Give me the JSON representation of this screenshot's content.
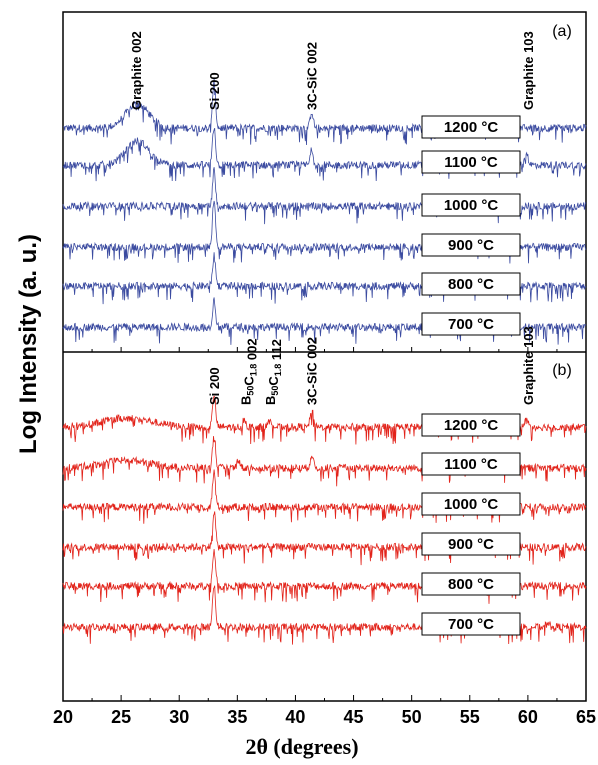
{
  "chart_data": {
    "type": "line",
    "ylabel": "Log Intensity (a. u.)",
    "xlabel": "2θ (degrees)",
    "xlim": [
      20,
      65
    ],
    "x_ticks": [
      20,
      25,
      30,
      35,
      40,
      45,
      50,
      55,
      60,
      65
    ],
    "panels": [
      {
        "label": "(a)",
        "color": "#3b4ba0",
        "series": [
          {
            "name": "1200 °C",
            "broad_peaks": [
              {
                "x": 26.4,
                "h": 0.8,
                "w": 1.4
              }
            ],
            "sharp_peaks": [
              {
                "x": 33.0,
                "h": 1.6
              },
              {
                "x": 41.4,
                "h": 0.55
              }
            ]
          },
          {
            "name": "1100 °C",
            "broad_peaks": [
              {
                "x": 26.4,
                "h": 0.8,
                "w": 1.4
              }
            ],
            "sharp_peaks": [
              {
                "x": 33.0,
                "h": 1.3
              },
              {
                "x": 41.4,
                "h": 0.5
              },
              {
                "x": 59.9,
                "h": 0.4
              }
            ]
          },
          {
            "name": "1000 °C",
            "broad_peaks": [],
            "sharp_peaks": [
              {
                "x": 33.0,
                "h": 1.2
              }
            ]
          },
          {
            "name": "900 °C",
            "broad_peaks": [],
            "sharp_peaks": [
              {
                "x": 33.0,
                "h": 1.6
              }
            ]
          },
          {
            "name": "800 °C",
            "broad_peaks": [],
            "sharp_peaks": [
              {
                "x": 33.0,
                "h": 1.0
              }
            ]
          },
          {
            "name": "700 °C",
            "broad_peaks": [],
            "sharp_peaks": [
              {
                "x": 33.0,
                "h": 0.9
              }
            ]
          }
        ],
        "peak_labels": [
          {
            "text": "Graphite 002",
            "x": 26.3
          },
          {
            "text": "Si 200",
            "x": 33.0
          },
          {
            "text": "3C-SiC 002",
            "x": 41.4
          },
          {
            "text": "Graphite 103",
            "x": 60.0
          }
        ]
      },
      {
        "label": "(b)",
        "color": "#e2231a",
        "series": [
          {
            "name": "1200 °C",
            "broad_peaks": [
              {
                "x": 25.5,
                "h": 0.3,
                "w": 3.0
              }
            ],
            "sharp_peaks": [
              {
                "x": 33.0,
                "h": 1.1
              },
              {
                "x": 35.6,
                "h": 0.3
              },
              {
                "x": 37.8,
                "h": 0.35
              },
              {
                "x": 41.4,
                "h": 0.6
              },
              {
                "x": 59.9,
                "h": 0.3
              }
            ]
          },
          {
            "name": "1100 °C",
            "broad_peaks": [
              {
                "x": 25.5,
                "h": 0.25,
                "w": 3.0
              }
            ],
            "sharp_peaks": [
              {
                "x": 33.0,
                "h": 1.1
              },
              {
                "x": 35.1,
                "h": 0.3
              },
              {
                "x": 41.4,
                "h": 0.45
              }
            ]
          },
          {
            "name": "1000 °C",
            "broad_peaks": [],
            "sharp_peaks": [
              {
                "x": 33.0,
                "h": 1.2
              }
            ]
          },
          {
            "name": "900 °C",
            "broad_peaks": [],
            "sharp_peaks": [
              {
                "x": 33.0,
                "h": 1.2
              }
            ]
          },
          {
            "name": "800 °C",
            "broad_peaks": [],
            "sharp_peaks": [
              {
                "x": 33.0,
                "h": 1.2
              }
            ]
          },
          {
            "name": "700 °C",
            "broad_peaks": [],
            "sharp_peaks": [
              {
                "x": 33.0,
                "h": 1.4
              },
              {
                "x": 61.7,
                "h": 0.2
              }
            ]
          }
        ],
        "peak_labels": [
          {
            "text": "Si 200",
            "x": 33.0
          },
          {
            "text": "B50C1.8 002",
            "x": 35.7,
            "rich": true,
            "base": "B",
            "sub1": "50",
            "mid": "C",
            "sub2": "1.8",
            "tail": " 002"
          },
          {
            "text": "B50C1.8 112",
            "x": 37.8,
            "rich": true,
            "base": "B",
            "sub1": "50",
            "mid": "C",
            "sub2": "1.8",
            "tail": " 112"
          },
          {
            "text": "3C-SiC 002",
            "x": 41.4
          },
          {
            "text": "Graphite 103",
            "x": 60.0
          }
        ]
      }
    ]
  }
}
